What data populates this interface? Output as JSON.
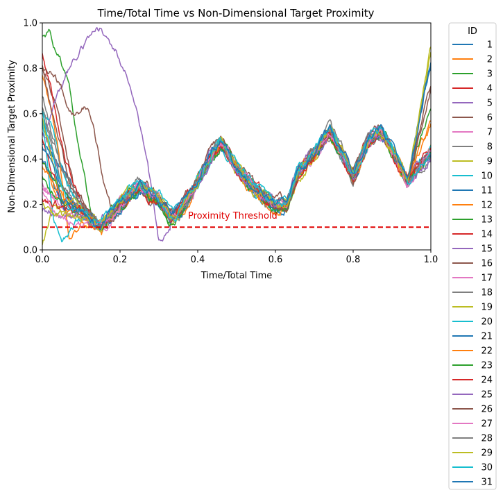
{
  "chart_data": {
    "type": "line",
    "title": "Time/Total Time vs Non-Dimensional Target Proximity",
    "xlabel": "Time/Total Time",
    "ylabel": "Non-Dimensional Target Proximity",
    "xlim": [
      0.0,
      1.0
    ],
    "ylim": [
      0.0,
      1.0
    ],
    "xticks": [
      "0.0",
      "0.2",
      "0.4",
      "0.6",
      "0.8",
      "1.0"
    ],
    "yticks": [
      "0.0",
      "0.2",
      "0.4",
      "0.6",
      "0.8",
      "1.0"
    ],
    "grid": false,
    "legend": {
      "title": "ID",
      "placement": "outside-right"
    },
    "threshold": {
      "y": 0.1,
      "label": "Proximity Threshold",
      "color": "#e00000",
      "style": "dashed"
    },
    "colors": [
      "#1f77b4",
      "#ff7f0e",
      "#2ca02c",
      "#d62728",
      "#9467bd",
      "#8c564b",
      "#e377c2",
      "#7f7f7f",
      "#bcbd22",
      "#17becf"
    ],
    "common_trajectory": {
      "x": [
        0.15,
        0.2,
        0.25,
        0.3,
        0.33,
        0.36,
        0.4,
        0.43,
        0.46,
        0.5,
        0.55,
        0.6,
        0.63,
        0.66,
        0.7,
        0.74,
        0.78,
        0.8,
        0.84,
        0.87,
        0.9,
        0.94
      ],
      "y": [
        0.1,
        0.2,
        0.28,
        0.22,
        0.14,
        0.18,
        0.3,
        0.4,
        0.47,
        0.36,
        0.26,
        0.19,
        0.2,
        0.34,
        0.42,
        0.52,
        0.4,
        0.32,
        0.48,
        0.52,
        0.44,
        0.3
      ]
    },
    "series": [
      {
        "name": "1",
        "start": [
          [
            0.0,
            0.46
          ]
        ],
        "end": 0.84
      },
      {
        "name": "2",
        "start": [
          [
            0.0,
            0.4
          ],
          [
            0.05,
            0.18
          ],
          [
            0.1,
            0.14
          ]
        ],
        "end": 0.42
      },
      {
        "name": "3",
        "start": [
          [
            0.0,
            0.94
          ],
          [
            0.02,
            0.95
          ],
          [
            0.04,
            0.86
          ],
          [
            0.07,
            0.72
          ],
          [
            0.1,
            0.4
          ],
          [
            0.13,
            0.12
          ]
        ],
        "end": 0.42
      },
      {
        "name": "4",
        "start": [
          [
            0.0,
            0.5
          ],
          [
            0.05,
            0.22
          ],
          [
            0.1,
            0.19
          ]
        ],
        "end": 0.41
      },
      {
        "name": "5",
        "start": [
          [
            0.0,
            0.52
          ],
          [
            0.03,
            0.42
          ],
          [
            0.06,
            0.25
          ],
          [
            0.1,
            0.18
          ]
        ],
        "end": 0.42
      },
      {
        "name": "6",
        "start": [
          [
            0.0,
            0.8
          ],
          [
            0.04,
            0.62
          ],
          [
            0.08,
            0.3
          ],
          [
            0.12,
            0.16
          ]
        ],
        "end": 0.43
      },
      {
        "name": "7",
        "start": [
          [
            0.0,
            0.3
          ],
          [
            0.06,
            0.2
          ],
          [
            0.1,
            0.18
          ]
        ],
        "end": 0.44
      },
      {
        "name": "8",
        "start": [
          [
            0.0,
            0.67
          ],
          [
            0.05,
            0.36
          ],
          [
            0.1,
            0.18
          ]
        ],
        "end": 0.42
      },
      {
        "name": "9",
        "start": [
          [
            0.0,
            0.03
          ],
          [
            0.03,
            0.18
          ],
          [
            0.08,
            0.14
          ],
          [
            0.12,
            0.16
          ]
        ],
        "end": 0.43
      },
      {
        "name": "10",
        "start": [
          [
            0.0,
            0.6
          ],
          [
            0.02,
            0.55
          ],
          [
            0.06,
            0.28
          ],
          [
            0.1,
            0.2
          ]
        ],
        "end": 0.44
      },
      {
        "name": "11",
        "start": [
          [
            0.0,
            0.58
          ],
          [
            0.04,
            0.33
          ],
          [
            0.08,
            0.2
          ]
        ],
        "end": 0.84
      },
      {
        "name": "12",
        "start": [
          [
            0.0,
            0.77
          ],
          [
            0.02,
            0.64
          ],
          [
            0.04,
            0.45
          ],
          [
            0.06,
            0.16
          ],
          [
            0.07,
            0.03
          ],
          [
            0.1,
            0.13
          ]
        ],
        "end": 0.56
      },
      {
        "name": "13",
        "start": [
          [
            0.0,
            0.38
          ],
          [
            0.04,
            0.3
          ],
          [
            0.08,
            0.2
          ]
        ],
        "end": 0.64
      },
      {
        "name": "14",
        "start": [
          [
            0.0,
            0.87
          ],
          [
            0.03,
            0.66
          ],
          [
            0.06,
            0.38
          ],
          [
            0.1,
            0.2
          ]
        ],
        "end": 0.43
      },
      {
        "name": "15",
        "start": [
          [
            0.0,
            0.5
          ],
          [
            0.05,
            0.73
          ],
          [
            0.1,
            0.9
          ],
          [
            0.15,
            0.97
          ],
          [
            0.19,
            0.88
          ],
          [
            0.23,
            0.72
          ],
          [
            0.27,
            0.4
          ],
          [
            0.3,
            0.05
          ],
          [
            0.33,
            0.1
          ]
        ],
        "end": 0.42
      },
      {
        "name": "16",
        "start": [
          [
            0.0,
            0.82
          ],
          [
            0.03,
            0.76
          ],
          [
            0.05,
            0.7
          ],
          [
            0.08,
            0.6
          ],
          [
            0.11,
            0.64
          ],
          [
            0.13,
            0.56
          ],
          [
            0.16,
            0.3
          ],
          [
            0.18,
            0.16
          ]
        ],
        "end": 0.72
      },
      {
        "name": "17",
        "start": [
          [
            0.0,
            0.26
          ],
          [
            0.04,
            0.2
          ],
          [
            0.08,
            0.16
          ]
        ],
        "end": 0.43
      },
      {
        "name": "18",
        "start": [
          [
            0.0,
            0.62
          ],
          [
            0.05,
            0.3
          ],
          [
            0.1,
            0.18
          ]
        ],
        "end": 0.44
      },
      {
        "name": "19",
        "start": [
          [
            0.0,
            0.58
          ],
          [
            0.05,
            0.22
          ],
          [
            0.1,
            0.18
          ]
        ],
        "end": 0.86
      },
      {
        "name": "20",
        "start": [
          [
            0.0,
            0.56
          ],
          [
            0.03,
            0.1
          ],
          [
            0.05,
            0.02
          ],
          [
            0.08,
            0.1
          ],
          [
            0.12,
            0.16
          ]
        ],
        "end": 0.45
      },
      {
        "name": "21",
        "start": [
          [
            0.0,
            0.4
          ],
          [
            0.05,
            0.2
          ],
          [
            0.1,
            0.15
          ]
        ],
        "end": 0.43
      },
      {
        "name": "22",
        "start": [
          [
            0.0,
            0.36
          ],
          [
            0.05,
            0.22
          ],
          [
            0.1,
            0.17
          ]
        ],
        "end": 0.55
      },
      {
        "name": "23",
        "start": [
          [
            0.0,
            0.33
          ],
          [
            0.05,
            0.2
          ],
          [
            0.1,
            0.16
          ]
        ],
        "end": 0.42
      },
      {
        "name": "24",
        "start": [
          [
            0.0,
            0.22
          ],
          [
            0.05,
            0.2
          ],
          [
            0.1,
            0.18
          ]
        ],
        "end": 0.43
      },
      {
        "name": "25",
        "start": [
          [
            0.0,
            0.18
          ],
          [
            0.05,
            0.16
          ],
          [
            0.1,
            0.15
          ]
        ],
        "end": 0.41
      },
      {
        "name": "26",
        "start": [
          [
            0.0,
            0.8
          ],
          [
            0.04,
            0.5
          ],
          [
            0.08,
            0.25
          ],
          [
            0.12,
            0.18
          ]
        ],
        "end": 0.7
      },
      {
        "name": "27",
        "start": [
          [
            0.0,
            0.24
          ],
          [
            0.05,
            0.14
          ],
          [
            0.1,
            0.12
          ]
        ],
        "end": 0.44
      },
      {
        "name": "28",
        "start": [
          [
            0.0,
            0.63
          ],
          [
            0.05,
            0.35
          ],
          [
            0.1,
            0.2
          ]
        ],
        "end": 0.43
      },
      {
        "name": "29",
        "start": [
          [
            0.0,
            0.2
          ],
          [
            0.05,
            0.15
          ],
          [
            0.1,
            0.14
          ]
        ],
        "end": 0.87
      },
      {
        "name": "30",
        "start": [
          [
            0.0,
            0.62
          ],
          [
            0.03,
            0.4
          ],
          [
            0.07,
            0.18
          ],
          [
            0.11,
            0.14
          ]
        ],
        "end": 0.43
      },
      {
        "name": "31",
        "start": [
          [
            0.0,
            0.45
          ],
          [
            0.05,
            0.25
          ],
          [
            0.1,
            0.16
          ]
        ],
        "end": 0.82
      }
    ]
  }
}
